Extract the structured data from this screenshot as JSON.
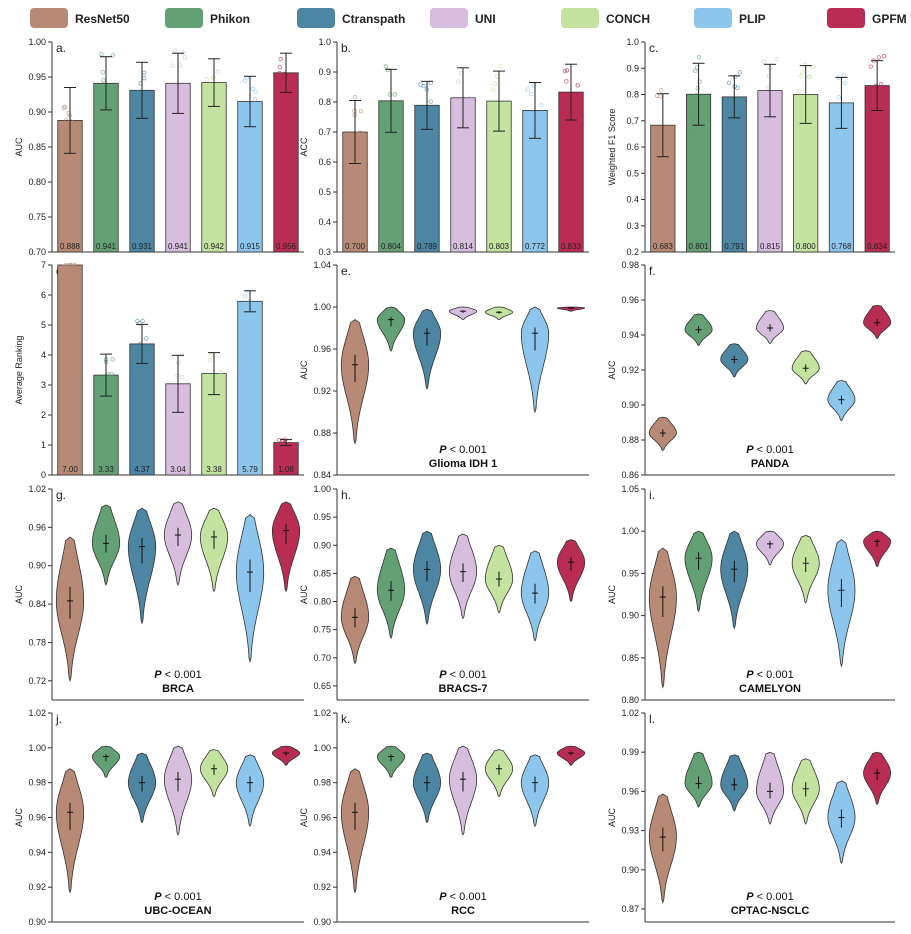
{
  "models": [
    "ResNet50",
    "Phikon",
    "Ctranspath",
    "UNI",
    "CONCH",
    "PLIP",
    "GPFM"
  ],
  "colors": [
    "#b88a76",
    "#63a174",
    "#4c86a3",
    "#d7bedf",
    "#c4e3a0",
    "#8dc6ec",
    "#b92d55"
  ],
  "chart_data": [
    {
      "id": "a",
      "panel_label": "a.",
      "type": "bar",
      "ylabel": "AUC",
      "ylim": [
        0.7,
        1.0
      ],
      "yticks": [
        0.7,
        0.75,
        0.8,
        0.85,
        0.9,
        0.95,
        1.0
      ],
      "ytick_labels": [
        "0.70",
        "0.75",
        "0.80",
        "0.85",
        "0.90",
        "0.95",
        "1.00"
      ],
      "values": [
        0.888,
        0.941,
        0.931,
        0.941,
        0.942,
        0.915,
        0.956
      ],
      "errors": [
        0.047,
        0.038,
        0.04,
        0.043,
        0.034,
        0.036,
        0.028
      ],
      "value_labels": [
        "0.888",
        "0.941",
        "0.931",
        "0.941",
        "0.942",
        "0.915",
        "0.956"
      ]
    },
    {
      "id": "b",
      "panel_label": "b.",
      "type": "bar",
      "ylabel": "ACC",
      "ylim": [
        0.3,
        1.0
      ],
      "yticks": [
        0.3,
        0.4,
        0.5,
        0.6,
        0.7,
        0.8,
        0.9,
        1.0
      ],
      "ytick_labels": [
        "0.3",
        "0.4",
        "0.5",
        "0.6",
        "0.7",
        "0.8",
        "0.9",
        "1.0"
      ],
      "values": [
        0.7,
        0.804,
        0.789,
        0.814,
        0.803,
        0.772,
        0.833
      ],
      "errors": [
        0.105,
        0.105,
        0.08,
        0.1,
        0.1,
        0.093,
        0.093
      ],
      "value_labels": [
        "0.700",
        "0.804",
        "0.789",
        "0.814",
        "0.803",
        "0.772",
        "0.833"
      ]
    },
    {
      "id": "c",
      "panel_label": "c.",
      "type": "bar",
      "ylabel": "Weighted F1 Score",
      "ylim": [
        0.2,
        1.0
      ],
      "yticks": [
        0.2,
        0.3,
        0.4,
        0.5,
        0.6,
        0.7,
        0.8,
        0.9,
        1.0
      ],
      "ytick_labels": [
        "0.2",
        "0.3",
        "0.4",
        "0.5",
        "0.6",
        "0.7",
        "0.8",
        "0.9",
        "1.0"
      ],
      "values": [
        0.683,
        0.801,
        0.791,
        0.815,
        0.8,
        0.768,
        0.834
      ],
      "errors": [
        0.12,
        0.118,
        0.08,
        0.1,
        0.11,
        0.097,
        0.095
      ],
      "value_labels": [
        "0.683",
        "0.801",
        "0.791",
        "0.815",
        "0.800",
        "0.768",
        "0.834"
      ]
    },
    {
      "id": "d",
      "panel_label": "d.",
      "type": "bar",
      "ylabel": "Average Ranking",
      "ylim": [
        0,
        7
      ],
      "yticks": [
        0,
        1,
        2,
        3,
        4,
        5,
        6,
        7
      ],
      "ytick_labels": [
        "0",
        "1",
        "2",
        "3",
        "4",
        "5",
        "6",
        "7"
      ],
      "values": [
        7.0,
        3.33,
        4.37,
        3.04,
        3.38,
        5.79,
        1.08
      ],
      "errors": [
        0.0,
        0.7,
        0.65,
        0.95,
        0.7,
        0.35,
        0.1
      ],
      "value_labels": [
        "7.00",
        "3.33",
        "4.37",
        "3.04",
        "3.38",
        "5.79",
        "1.08"
      ]
    },
    {
      "id": "e",
      "panel_label": "e.",
      "type": "violin",
      "ylabel": "AUC",
      "title": "Glioma IDH 1",
      "pvalue": "< 0.001",
      "ylim": [
        0.84,
        1.04
      ],
      "yticks": [
        0.84,
        0.88,
        0.92,
        0.96,
        1.0,
        1.04
      ],
      "ytick_labels": [
        "0.84",
        "0.88",
        "0.92",
        "0.96",
        "1.00",
        "1.04"
      ],
      "medians": [
        0.945,
        0.988,
        0.975,
        0.996,
        0.995,
        0.975,
        0.999
      ],
      "ranges": [
        [
          0.87,
          0.988
        ],
        [
          0.958,
          1.0
        ],
        [
          0.922,
          0.998
        ],
        [
          0.988,
          1.0
        ],
        [
          0.988,
          1.0
        ],
        [
          0.9,
          1.0
        ],
        [
          0.996,
          1.0
        ]
      ]
    },
    {
      "id": "f",
      "panel_label": "f.",
      "type": "violin",
      "ylabel": "AUC",
      "title": "PANDA",
      "pvalue": "< 0.001",
      "ylim": [
        0.86,
        0.98
      ],
      "yticks": [
        0.86,
        0.88,
        0.9,
        0.92,
        0.94,
        0.96,
        0.98
      ],
      "ytick_labels": [
        "0.86",
        "0.88",
        "0.90",
        "0.92",
        "0.94",
        "0.96",
        "0.98"
      ],
      "medians": [
        0.884,
        0.943,
        0.926,
        0.944,
        0.921,
        0.903,
        0.947
      ],
      "ranges": [
        [
          0.874,
          0.893
        ],
        [
          0.934,
          0.952
        ],
        [
          0.916,
          0.935
        ],
        [
          0.935,
          0.954
        ],
        [
          0.912,
          0.931
        ],
        [
          0.891,
          0.914
        ],
        [
          0.938,
          0.957
        ]
      ]
    },
    {
      "id": "g",
      "panel_label": "g.",
      "type": "violin",
      "ylabel": "AUC",
      "title": "BRCA",
      "pvalue": "< 0.001",
      "ylim": [
        0.69,
        1.02
      ],
      "yticks": [
        0.72,
        0.78,
        0.84,
        0.9,
        0.96,
        1.02
      ],
      "ytick_labels": [
        "0.72",
        "0.78",
        "0.84",
        "0.90",
        "0.96",
        "1.02"
      ],
      "medians": [
        0.845,
        0.935,
        0.93,
        0.948,
        0.945,
        0.89,
        0.955
      ],
      "ranges": [
        [
          0.72,
          0.945
        ],
        [
          0.87,
          0.995
        ],
        [
          0.81,
          0.99
        ],
        [
          0.87,
          1.0
        ],
        [
          0.86,
          0.99
        ],
        [
          0.75,
          0.98
        ],
        [
          0.86,
          1.0
        ]
      ]
    },
    {
      "id": "h",
      "panel_label": "h.",
      "type": "violin",
      "ylabel": "AUC",
      "title": "BRACS-7",
      "pvalue": "< 0.001",
      "ylim": [
        0.625,
        1.0
      ],
      "yticks": [
        0.65,
        0.7,
        0.75,
        0.8,
        0.85,
        0.9,
        0.95,
        1.0
      ],
      "ytick_labels": [
        "0.65",
        "0.70",
        "0.75",
        "0.80",
        "0.85",
        "0.90",
        "0.95",
        "1.00"
      ],
      "medians": [
        0.772,
        0.82,
        0.857,
        0.853,
        0.84,
        0.815,
        0.87
      ],
      "ranges": [
        [
          0.69,
          0.845
        ],
        [
          0.735,
          0.895
        ],
        [
          0.76,
          0.925
        ],
        [
          0.77,
          0.92
        ],
        [
          0.78,
          0.9
        ],
        [
          0.73,
          0.89
        ],
        [
          0.8,
          0.91
        ]
      ]
    },
    {
      "id": "i",
      "panel_label": "i.",
      "type": "violin",
      "ylabel": "AUC",
      "title": "CAMELYON",
      "pvalue": "< 0.001",
      "ylim": [
        0.8,
        1.05
      ],
      "yticks": [
        0.8,
        0.85,
        0.9,
        0.95,
        1.0,
        1.05
      ],
      "ytick_labels": [
        "0.80",
        "0.85",
        "0.90",
        "0.95",
        "1.00",
        "1.05"
      ],
      "medians": [
        0.922,
        0.968,
        0.955,
        0.985,
        0.962,
        0.93,
        0.988
      ],
      "ranges": [
        [
          0.815,
          0.98
        ],
        [
          0.905,
          1.0
        ],
        [
          0.885,
          1.0
        ],
        [
          0.96,
          1.0
        ],
        [
          0.915,
          0.995
        ],
        [
          0.84,
          0.99
        ],
        [
          0.958,
          1.0
        ]
      ]
    },
    {
      "id": "j",
      "panel_label": "j.",
      "type": "violin",
      "ylabel": "AUC",
      "title": "UBC-OCEAN",
      "pvalue": "< 0.001",
      "ylim": [
        0.9,
        1.02
      ],
      "yticks": [
        0.9,
        0.92,
        0.94,
        0.96,
        0.98,
        1.0,
        1.02
      ],
      "ytick_labels": [
        "0.90",
        "0.92",
        "0.94",
        "0.96",
        "0.98",
        "1.00",
        "1.02"
      ],
      "medians": [
        0.963,
        0.995,
        0.98,
        0.982,
        0.988,
        0.98,
        0.997
      ],
      "ranges": [
        [
          0.917,
          0.988
        ],
        [
          0.983,
          1.001
        ],
        [
          0.957,
          0.997
        ],
        [
          0.95,
          1.001
        ],
        [
          0.972,
          0.999
        ],
        [
          0.955,
          0.996
        ],
        [
          0.99,
          1.001
        ]
      ]
    },
    {
      "id": "k",
      "panel_label": "k.",
      "type": "violin",
      "ylabel": "AUC",
      "title": "RCC",
      "pvalue": "< 0.001",
      "ylim": [
        0.9,
        1.02
      ],
      "yticks": [
        0.9,
        0.92,
        0.94,
        0.96,
        0.98,
        1.0,
        1.02
      ],
      "ytick_labels": [
        "0.90",
        "0.92",
        "0.94",
        "0.96",
        "0.98",
        "1.00",
        "1.02"
      ],
      "medians": [
        0.963,
        0.995,
        0.98,
        0.982,
        0.988,
        0.98,
        0.997
      ],
      "ranges": [
        [
          0.917,
          0.988
        ],
        [
          0.983,
          1.001
        ],
        [
          0.957,
          0.997
        ],
        [
          0.95,
          1.001
        ],
        [
          0.972,
          0.999
        ],
        [
          0.955,
          0.996
        ],
        [
          0.99,
          1.001
        ]
      ]
    },
    {
      "id": "l",
      "panel_label": "l.",
      "type": "violin",
      "ylabel": "AUC",
      "title": "CPTAC-NSCLC",
      "pvalue": "< 0.001",
      "ylim": [
        0.86,
        1.02
      ],
      "yticks": [
        0.87,
        0.9,
        0.93,
        0.96,
        0.99,
        1.02
      ],
      "ytick_labels": [
        "0.87",
        "0.90",
        "0.93",
        "0.96",
        "0.99",
        "1.02"
      ],
      "medians": [
        0.925,
        0.966,
        0.965,
        0.96,
        0.962,
        0.94,
        0.974
      ],
      "ranges": [
        [
          0.875,
          0.958
        ],
        [
          0.948,
          0.99
        ],
        [
          0.945,
          0.988
        ],
        [
          0.935,
          0.99
        ],
        [
          0.935,
          0.985
        ],
        [
          0.905,
          0.968
        ],
        [
          0.95,
          0.99
        ]
      ]
    }
  ]
}
